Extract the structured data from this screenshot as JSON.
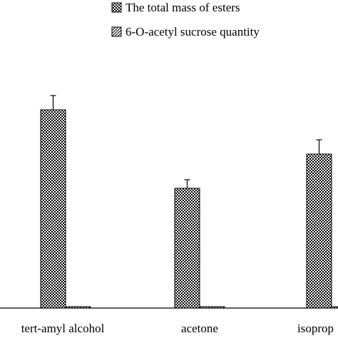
{
  "chart_data": {
    "type": "bar",
    "title": "",
    "xlabel": "",
    "ylabel": "",
    "categories": [
      "tert-amyl alcohol",
      "acetone",
      "isoprop"
    ],
    "series": [
      {
        "name": "The total mass of esters",
        "values": [
          6.95,
          4.2,
          5.4
        ],
        "errors": [
          0.5,
          0.3,
          0.5
        ],
        "pattern": "checker"
      },
      {
        "name": "6-O-acetyl sucrose quantity",
        "values": [
          0.05,
          0.05,
          0.05
        ],
        "errors": [
          0,
          0,
          0
        ],
        "pattern": "diagonal"
      }
    ],
    "ylim": [
      0,
      10
    ],
    "grid": false,
    "legend_position": "top-right",
    "colors": {
      "ink": "#000000",
      "background": "#ffffff"
    }
  }
}
